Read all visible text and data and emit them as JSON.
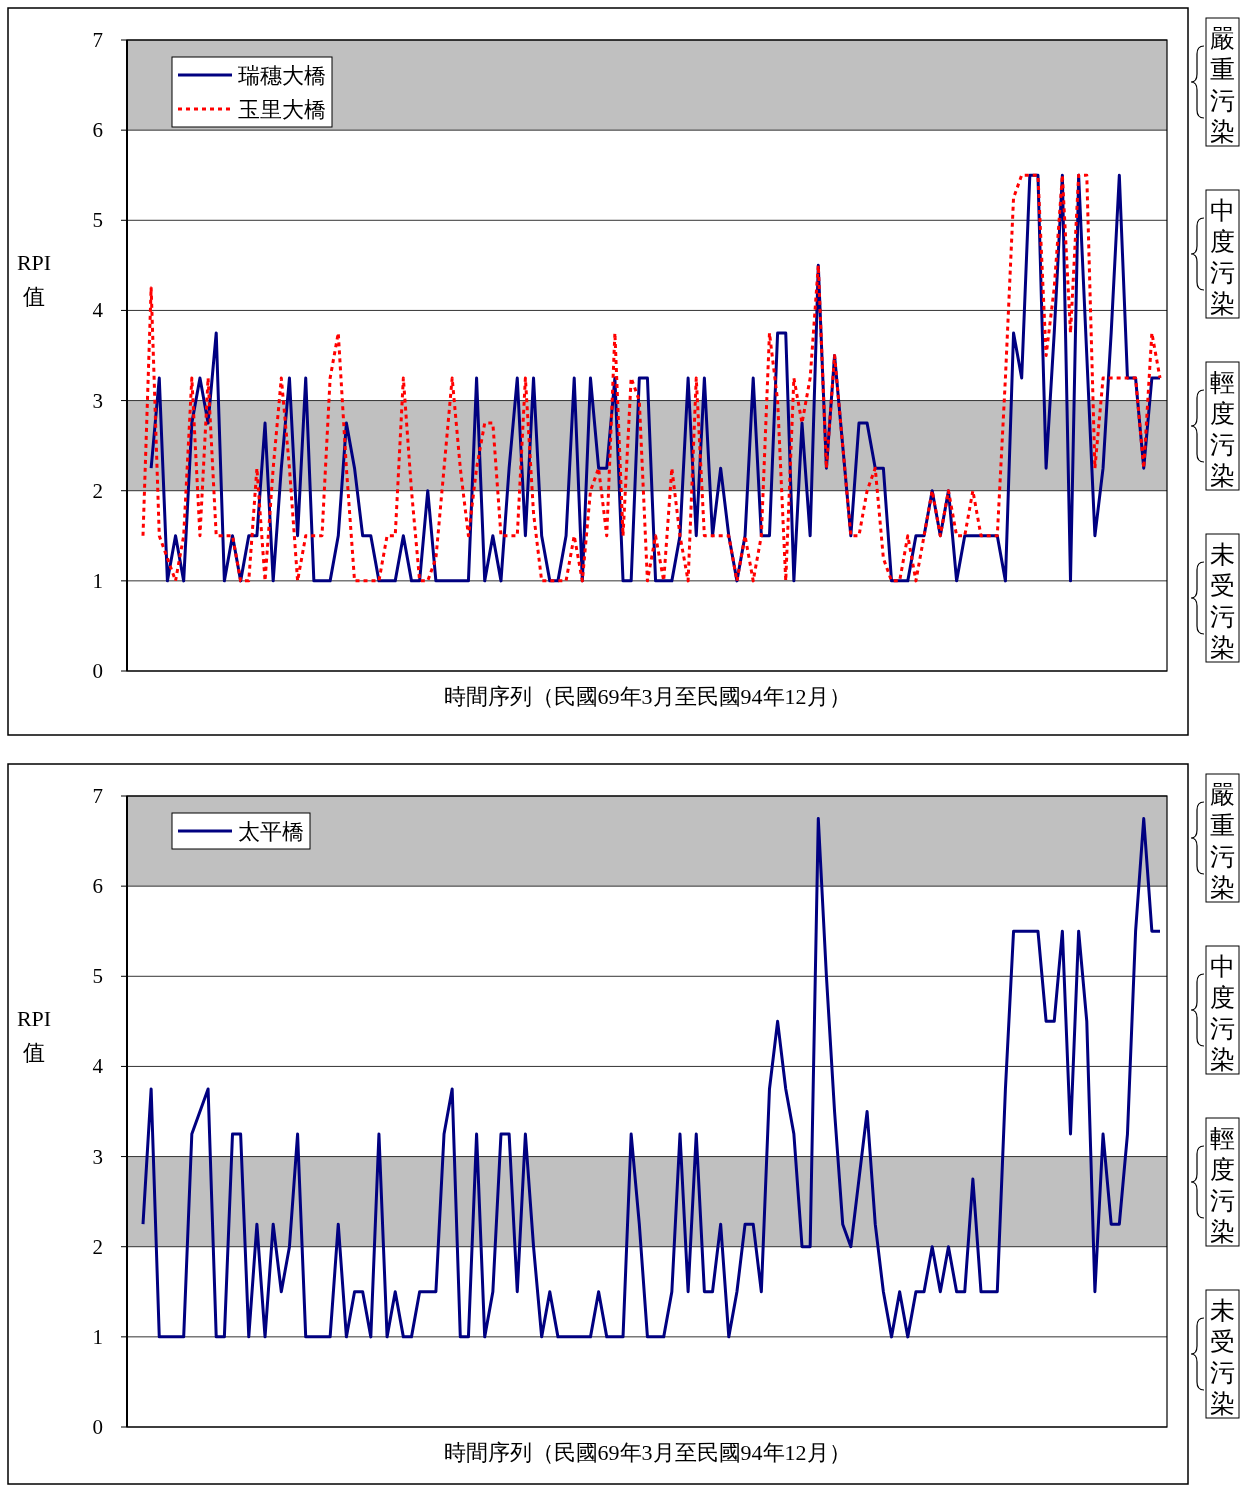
{
  "chart_data": [
    {
      "type": "line",
      "xlabel": "時間序列（民國69年3月至民國94年12月）",
      "ylabel": "RPI 值",
      "categories": [
        null,
        null,
        null,
        null,
        null,
        null,
        null,
        null,
        null,
        null,
        null,
        null,
        null,
        null,
        null,
        null,
        null,
        null,
        null,
        null,
        null,
        null,
        null,
        null,
        null,
        null,
        null,
        null,
        null,
        null,
        null,
        null,
        null,
        null,
        null,
        null,
        null,
        null,
        null,
        null,
        null,
        null,
        null,
        null,
        null,
        null,
        null,
        null,
        null,
        null,
        null,
        null,
        null,
        null,
        null,
        null,
        null,
        null,
        null,
        null,
        null,
        null,
        null,
        null,
        null,
        null,
        null,
        null,
        null,
        null,
        null,
        null,
        null,
        null,
        null,
        null,
        null,
        null,
        null,
        null,
        null,
        null,
        null,
        null,
        null,
        null,
        null,
        null,
        null,
        null,
        null,
        null,
        null,
        null,
        null,
        null,
        null,
        null,
        null,
        null,
        null,
        null,
        null,
        null,
        null,
        null,
        null,
        null,
        null,
        null,
        null,
        null,
        null,
        null,
        null,
        null,
        null,
        null,
        null,
        null,
        null,
        null,
        null,
        null,
        null,
        null
      ],
      "series": [
        {
          "name": "瑞穗大橋",
          "color": "#000080",
          "line_style": "solid",
          "values": [
            null,
            2.25,
            3.25,
            1,
            1.5,
            1,
            2.75,
            3.25,
            2.75,
            3.75,
            1,
            1.5,
            1,
            1.5,
            1.5,
            2.75,
            1,
            2.25,
            3.25,
            1.5,
            3.25,
            1,
            1,
            1,
            1.5,
            2.75,
            2.25,
            1.5,
            1.5,
            1,
            1,
            1,
            1.5,
            1,
            1,
            2,
            1,
            1,
            1,
            1,
            1,
            3.25,
            1,
            1.5,
            1,
            2.25,
            3.25,
            1.5,
            3.25,
            1.5,
            1,
            1,
            1.5,
            3.25,
            1,
            3.25,
            2.25,
            2.25,
            3.25,
            1,
            1,
            3.25,
            3.25,
            1,
            1,
            1,
            1.5,
            3.25,
            1.5,
            3.25,
            1.5,
            2.25,
            1.5,
            1,
            1.5,
            3.25,
            1.5,
            1.5,
            3.75,
            3.75,
            1,
            2.75,
            1.5,
            4.5,
            2.25,
            3.5,
            2.5,
            1.5,
            2.75,
            2.75,
            2.25,
            2.25,
            1,
            1,
            1,
            1.5,
            1.5,
            2,
            1.5,
            2,
            1,
            1.5,
            1.5,
            1.5,
            1.5,
            1.5,
            1,
            3.75,
            3.25,
            5.5,
            5.5,
            2.25,
            3.75,
            5.5,
            1,
            5.5,
            3.5,
            1.5,
            2.25,
            3.75,
            5.5,
            3.25,
            3.25,
            2.25,
            3.25,
            3.25
          ]
        },
        {
          "name": "玉里大橋",
          "color": "#ff0000",
          "line_style": "dotted",
          "values": [
            1.5,
            4.25,
            1.5,
            1.25,
            1,
            1.5,
            3.25,
            1.5,
            3.25,
            1.5,
            1.5,
            1.5,
            1,
            1,
            2.25,
            1,
            2.25,
            3.25,
            2.25,
            1,
            1.5,
            1.5,
            1.5,
            3.25,
            3.75,
            2.25,
            1,
            1,
            1,
            1,
            1.5,
            1.5,
            3.25,
            2,
            1,
            1,
            1.25,
            2.25,
            3.25,
            2.25,
            1.5,
            2.25,
            2.75,
            2.75,
            1.5,
            1.5,
            1.5,
            3.25,
            1.75,
            1,
            1,
            1,
            1,
            1.5,
            1,
            2,
            2.25,
            1.5,
            3.75,
            1.5,
            3.25,
            3,
            1,
            1.5,
            1,
            2.25,
            1.5,
            1,
            3.25,
            1.5,
            1.5,
            1.5,
            1.5,
            1,
            1.5,
            1,
            1.5,
            3.75,
            3,
            1,
            3.25,
            2.75,
            3.25,
            4.5,
            2.25,
            3.5,
            2.5,
            1.5,
            1.5,
            2,
            2.25,
            1.25,
            1,
            1,
            1.5,
            1,
            1.5,
            2,
            1.5,
            2,
            1.5,
            1.5,
            2,
            1.5,
            1.5,
            1.5,
            3.25,
            5.25,
            5.5,
            5.5,
            5.5,
            3.5,
            4.25,
            5.5,
            3.75,
            5.5,
            5.5,
            2.25,
            3.25,
            3.25,
            3.25,
            3.25,
            3.25,
            2.25,
            3.75,
            3.25
          ]
        }
      ],
      "ylim": [
        0,
        7
      ],
      "yticks": [
        0,
        1,
        2,
        3,
        4,
        5,
        6,
        7
      ],
      "grid": "y",
      "legend": "top left",
      "bands": [
        {
          "axis": "y",
          "from": 2,
          "to": 3,
          "color": "#c0c0c0"
        },
        {
          "axis": "y",
          "from": 6,
          "to": 7,
          "color": "#c0c0c0"
        }
      ],
      "annotations": [
        "嚴重污染",
        "中度污染",
        "輕度污染",
        "未受污染"
      ]
    },
    {
      "type": "line",
      "xlabel": "時間序列（民國69年3月至民國94年12月）",
      "ylabel": "RPI 值",
      "categories": [
        null,
        null,
        null,
        null,
        null,
        null,
        null,
        null,
        null,
        null,
        null,
        null,
        null,
        null,
        null,
        null,
        null,
        null,
        null,
        null,
        null,
        null,
        null,
        null,
        null,
        null,
        null,
        null,
        null,
        null,
        null,
        null,
        null,
        null,
        null,
        null,
        null,
        null,
        null,
        null,
        null,
        null,
        null,
        null,
        null,
        null,
        null,
        null,
        null,
        null,
        null,
        null,
        null,
        null,
        null,
        null,
        null,
        null,
        null,
        null,
        null,
        null,
        null,
        null,
        null,
        null,
        null,
        null,
        null,
        null,
        null,
        null,
        null,
        null,
        null,
        null,
        null,
        null,
        null,
        null,
        null,
        null,
        null,
        null,
        null,
        null,
        null,
        null,
        null,
        null,
        null,
        null,
        null,
        null,
        null,
        null,
        null,
        null,
        null,
        null,
        null,
        null,
        null,
        null,
        null,
        null,
        null,
        null,
        null,
        null,
        null,
        null,
        null,
        null,
        null,
        null,
        null,
        null,
        null,
        null,
        null,
        null,
        null,
        null,
        null,
        null
      ],
      "series": [
        {
          "name": "太平橋",
          "color": "#000080",
          "line_style": "solid",
          "values": [
            2.25,
            3.75,
            1,
            1,
            1,
            1,
            3.25,
            3.5,
            3.75,
            1,
            1,
            3.25,
            3.25,
            1,
            2.25,
            1,
            2.25,
            1.5,
            2,
            3.25,
            1,
            1,
            1,
            1,
            2.25,
            1,
            1.5,
            1.5,
            1,
            3.25,
            1,
            1.5,
            1,
            1,
            1.5,
            1.5,
            1.5,
            3.25,
            3.75,
            1,
            1,
            3.25,
            1,
            1.5,
            3.25,
            3.25,
            1.5,
            3.25,
            2,
            1,
            1.5,
            1,
            1,
            1,
            1,
            1,
            1.5,
            1,
            1,
            1,
            3.25,
            2.25,
            1,
            1,
            1,
            1.5,
            3.25,
            1.5,
            3.25,
            1.5,
            1.5,
            2.25,
            1,
            1.5,
            2.25,
            2.25,
            1.5,
            3.75,
            4.5,
            3.75,
            3.25,
            2,
            2,
            6.75,
            5,
            3.5,
            2.25,
            2,
            2.75,
            3.5,
            2.25,
            1.5,
            1,
            1.5,
            1,
            1.5,
            1.5,
            2,
            1.5,
            2,
            1.5,
            1.5,
            2.75,
            1.5,
            1.5,
            1.5,
            3.75,
            5.5,
            5.5,
            5.5,
            5.5,
            4.5,
            4.5,
            5.5,
            3.25,
            5.5,
            4.5,
            1.5,
            3.25,
            2.25,
            2.25,
            3.25,
            5.5,
            6.75,
            5.5,
            5.5
          ]
        }
      ],
      "ylim": [
        0,
        7
      ],
      "yticks": [
        0,
        1,
        2,
        3,
        4,
        5,
        6,
        7
      ],
      "grid": "y",
      "legend": "top left",
      "bands": [
        {
          "axis": "y",
          "from": 2,
          "to": 3,
          "color": "#c0c0c0"
        },
        {
          "axis": "y",
          "from": 6,
          "to": 7,
          "color": "#c0c0c0"
        }
      ],
      "annotations": [
        "嚴重污染",
        "中度污染",
        "輕度污染",
        "未受污染"
      ]
    }
  ]
}
